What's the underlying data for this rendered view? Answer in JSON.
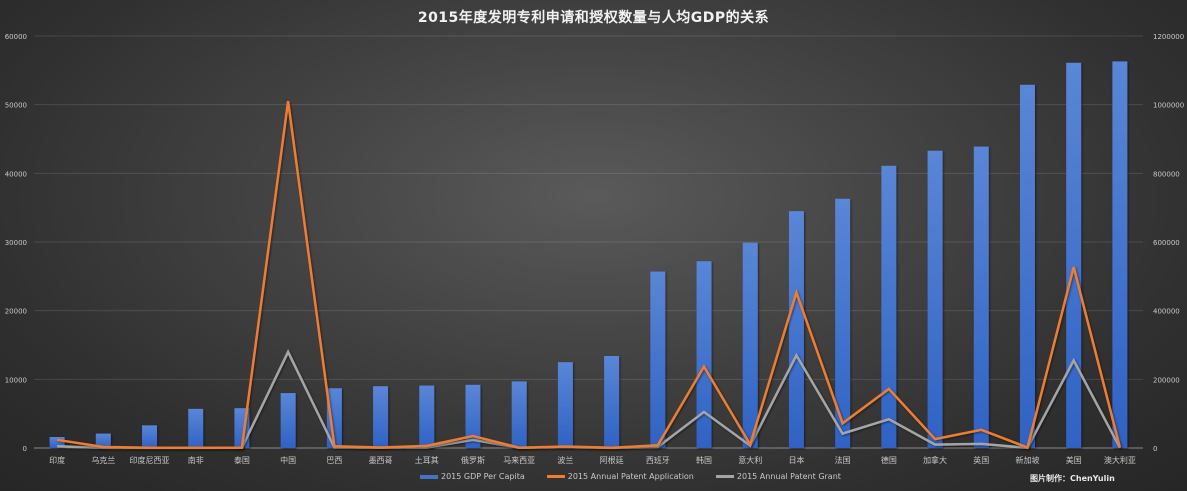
{
  "chart_data": {
    "type": "bar+line",
    "title": "2015年度发明专利申请和授权数量与人均GDP的关系",
    "xlabel": "",
    "ylabel_left": "",
    "ylabel_right": "",
    "ylim_left": [
      0,
      60000
    ],
    "ylim_right": [
      0,
      1200000
    ],
    "yticks_left": [
      "0",
      "10000",
      "20000",
      "30000",
      "40000",
      "50000",
      "60000"
    ],
    "yticks_right": [
      "0",
      "200000",
      "400000",
      "600000",
      "800000",
      "1000000",
      "1200000"
    ],
    "grid": true,
    "legend_position": "bottom",
    "categories": [
      "印度",
      "乌克兰",
      "印度尼西亚",
      "南非",
      "泰国",
      "中国",
      "巴西",
      "墨西哥",
      "土耳其",
      "俄罗斯",
      "马来西亚",
      "波兰",
      "阿根廷",
      "西班牙",
      "韩国",
      "意大利",
      "日本",
      "法国",
      "德国",
      "加拿大",
      "英国",
      "新加坡",
      "美国",
      "澳大利亚"
    ],
    "series": [
      {
        "name": "2015 GDP Per Capita",
        "type": "bar",
        "axis": "left",
        "color": "#4472c4",
        "values": [
          1600,
          2100,
          3300,
          5700,
          5800,
          8000,
          8700,
          9000,
          9100,
          9200,
          9700,
          12500,
          13400,
          25700,
          27200,
          29900,
          34500,
          36300,
          41100,
          43300,
          43900,
          52900,
          56100,
          56300
        ]
      },
      {
        "name": "2015 Annual Patent Application",
        "type": "line",
        "axis": "right",
        "color": "#ed7d31",
        "values": [
          24000,
          3000,
          1000,
          1000,
          1000,
          1010000,
          5000,
          1500,
          6000,
          35000,
          1000,
          4500,
          500,
          8000,
          237000,
          10000,
          453000,
          72000,
          172000,
          26000,
          53000,
          1500,
          527000,
          1500
        ]
      },
      {
        "name": "2015 Annual Patent Grant",
        "type": "line",
        "axis": "right",
        "color": "#a5a5a5",
        "values": [
          5000,
          1000,
          300,
          300,
          800,
          280000,
          1500,
          500,
          1500,
          24000,
          600,
          2500,
          300,
          3000,
          105000,
          7000,
          270000,
          42000,
          84000,
          10000,
          12000,
          600,
          255000,
          500
        ]
      }
    ]
  },
  "credit": "图片制作：ChenYulin"
}
